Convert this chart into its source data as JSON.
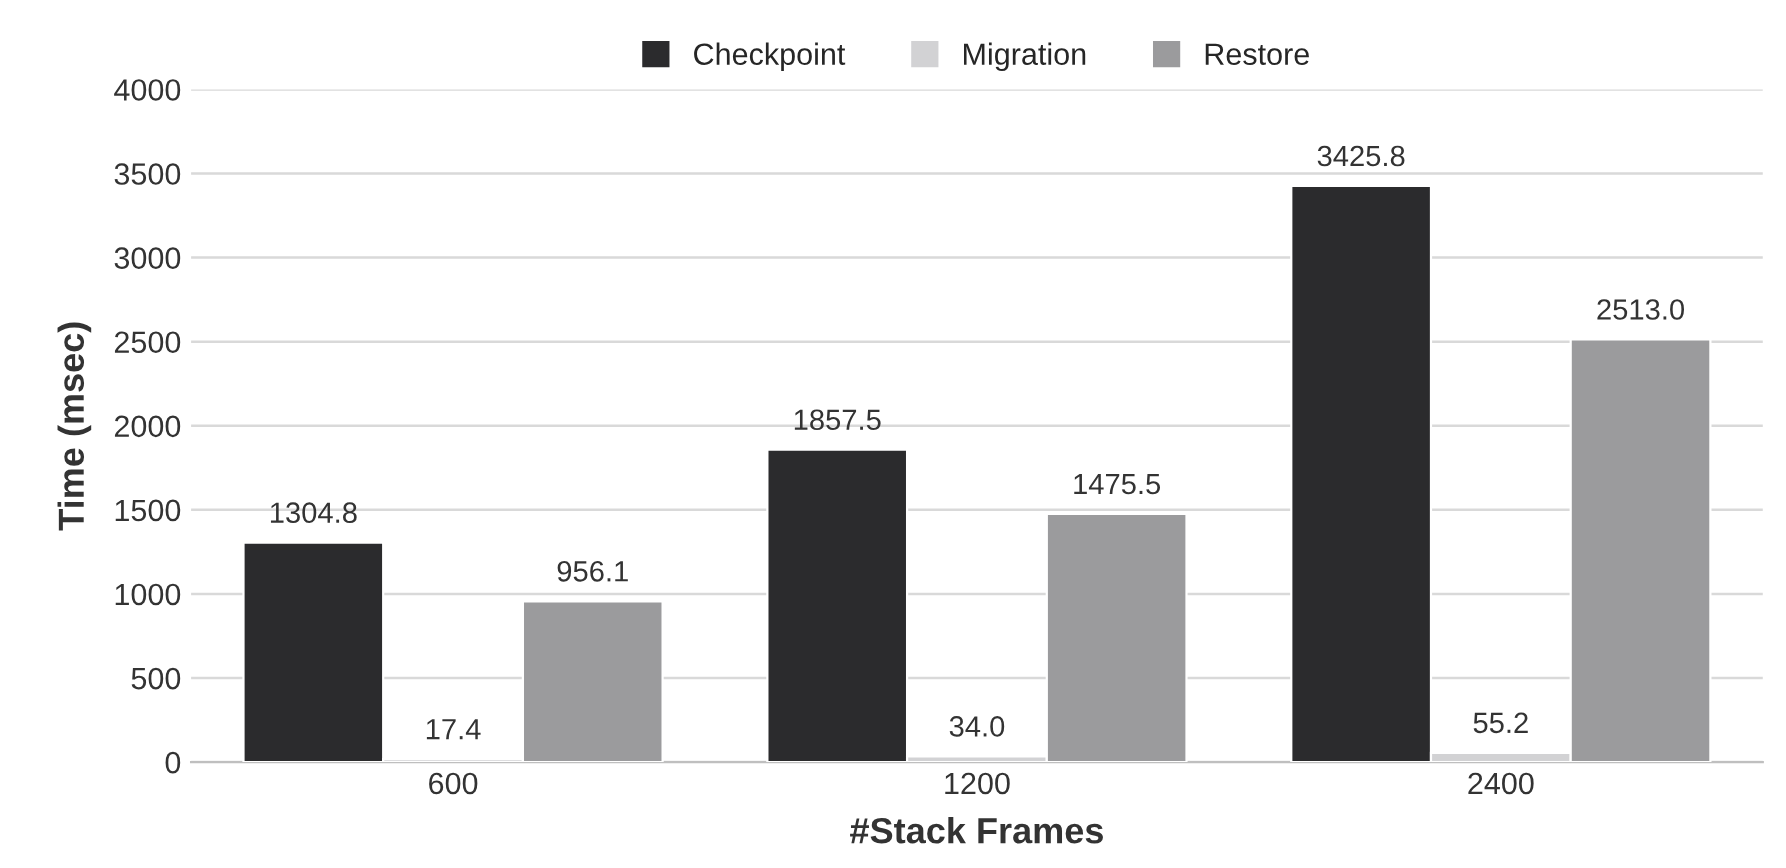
{
  "chart_data": {
    "type": "bar",
    "xlabel": "#Stack Frames",
    "ylabel": "Time (msec)",
    "categories": [
      "600",
      "1200",
      "2400"
    ],
    "series": [
      {
        "name": "Checkpoint",
        "color": "#2b2b2d",
        "values": [
          1304.8,
          1857.5,
          3425.8
        ],
        "value_labels": [
          "1304.8",
          "1857.5",
          "3425.8"
        ]
      },
      {
        "name": "Migration",
        "color": "#d2d2d4",
        "values": [
          17.4,
          34.0,
          55.2
        ],
        "value_labels": [
          "17.4",
          "34.0",
          "55.2"
        ]
      },
      {
        "name": "Restore",
        "color": "#9b9b9d",
        "values": [
          956.1,
          1475.5,
          2513.0
        ],
        "value_labels": [
          "956.1",
          "1475.5",
          "2513.0"
        ]
      }
    ],
    "ylim": [
      0,
      4000
    ],
    "yticks": [
      0,
      500,
      1000,
      1500,
      2000,
      2500,
      3000,
      3500,
      4000
    ],
    "grid": "y",
    "legend": "top"
  }
}
